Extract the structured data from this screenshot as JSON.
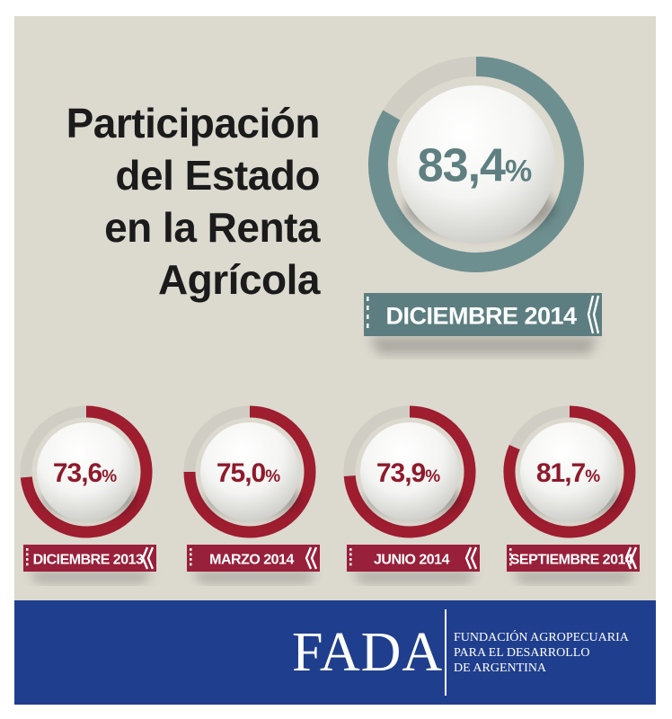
{
  "title_lines": [
    "Participación",
    "del Estado",
    "en la Renta",
    "Agrícola"
  ],
  "colors": {
    "background": "#dcd9cf",
    "main_ring": "#6e8f8f",
    "main_text": "#5f7f80",
    "main_ribbon": "#5d7e80",
    "small_ring": "#9e1d2f",
    "small_text": "#8e1a2c",
    "small_ribbon": "#98203a",
    "footer": "#1f3e8d"
  },
  "chart_data": {
    "type": "donut",
    "unit": "%",
    "series": [
      {
        "label": "DICIEMBRE 2013",
        "value": 73.6,
        "display": "73,6"
      },
      {
        "label": "MARZO 2014",
        "value": 75.0,
        "display": "75,0"
      },
      {
        "label": "JUNIO 2014",
        "value": 73.9,
        "display": "73,9"
      },
      {
        "label": "SEPTIEMBRE 2014",
        "value": 81.7,
        "display": "81,7"
      }
    ],
    "highlight": {
      "label": "DICIEMBRE 2014",
      "value": 83.4,
      "display": "83,4"
    }
  },
  "footer": {
    "logo": "FADA",
    "name_lines": [
      "FUNDACIÓN AGROPECUARIA",
      "PARA EL DESARROLLO",
      "DE ARGENTINA"
    ]
  }
}
